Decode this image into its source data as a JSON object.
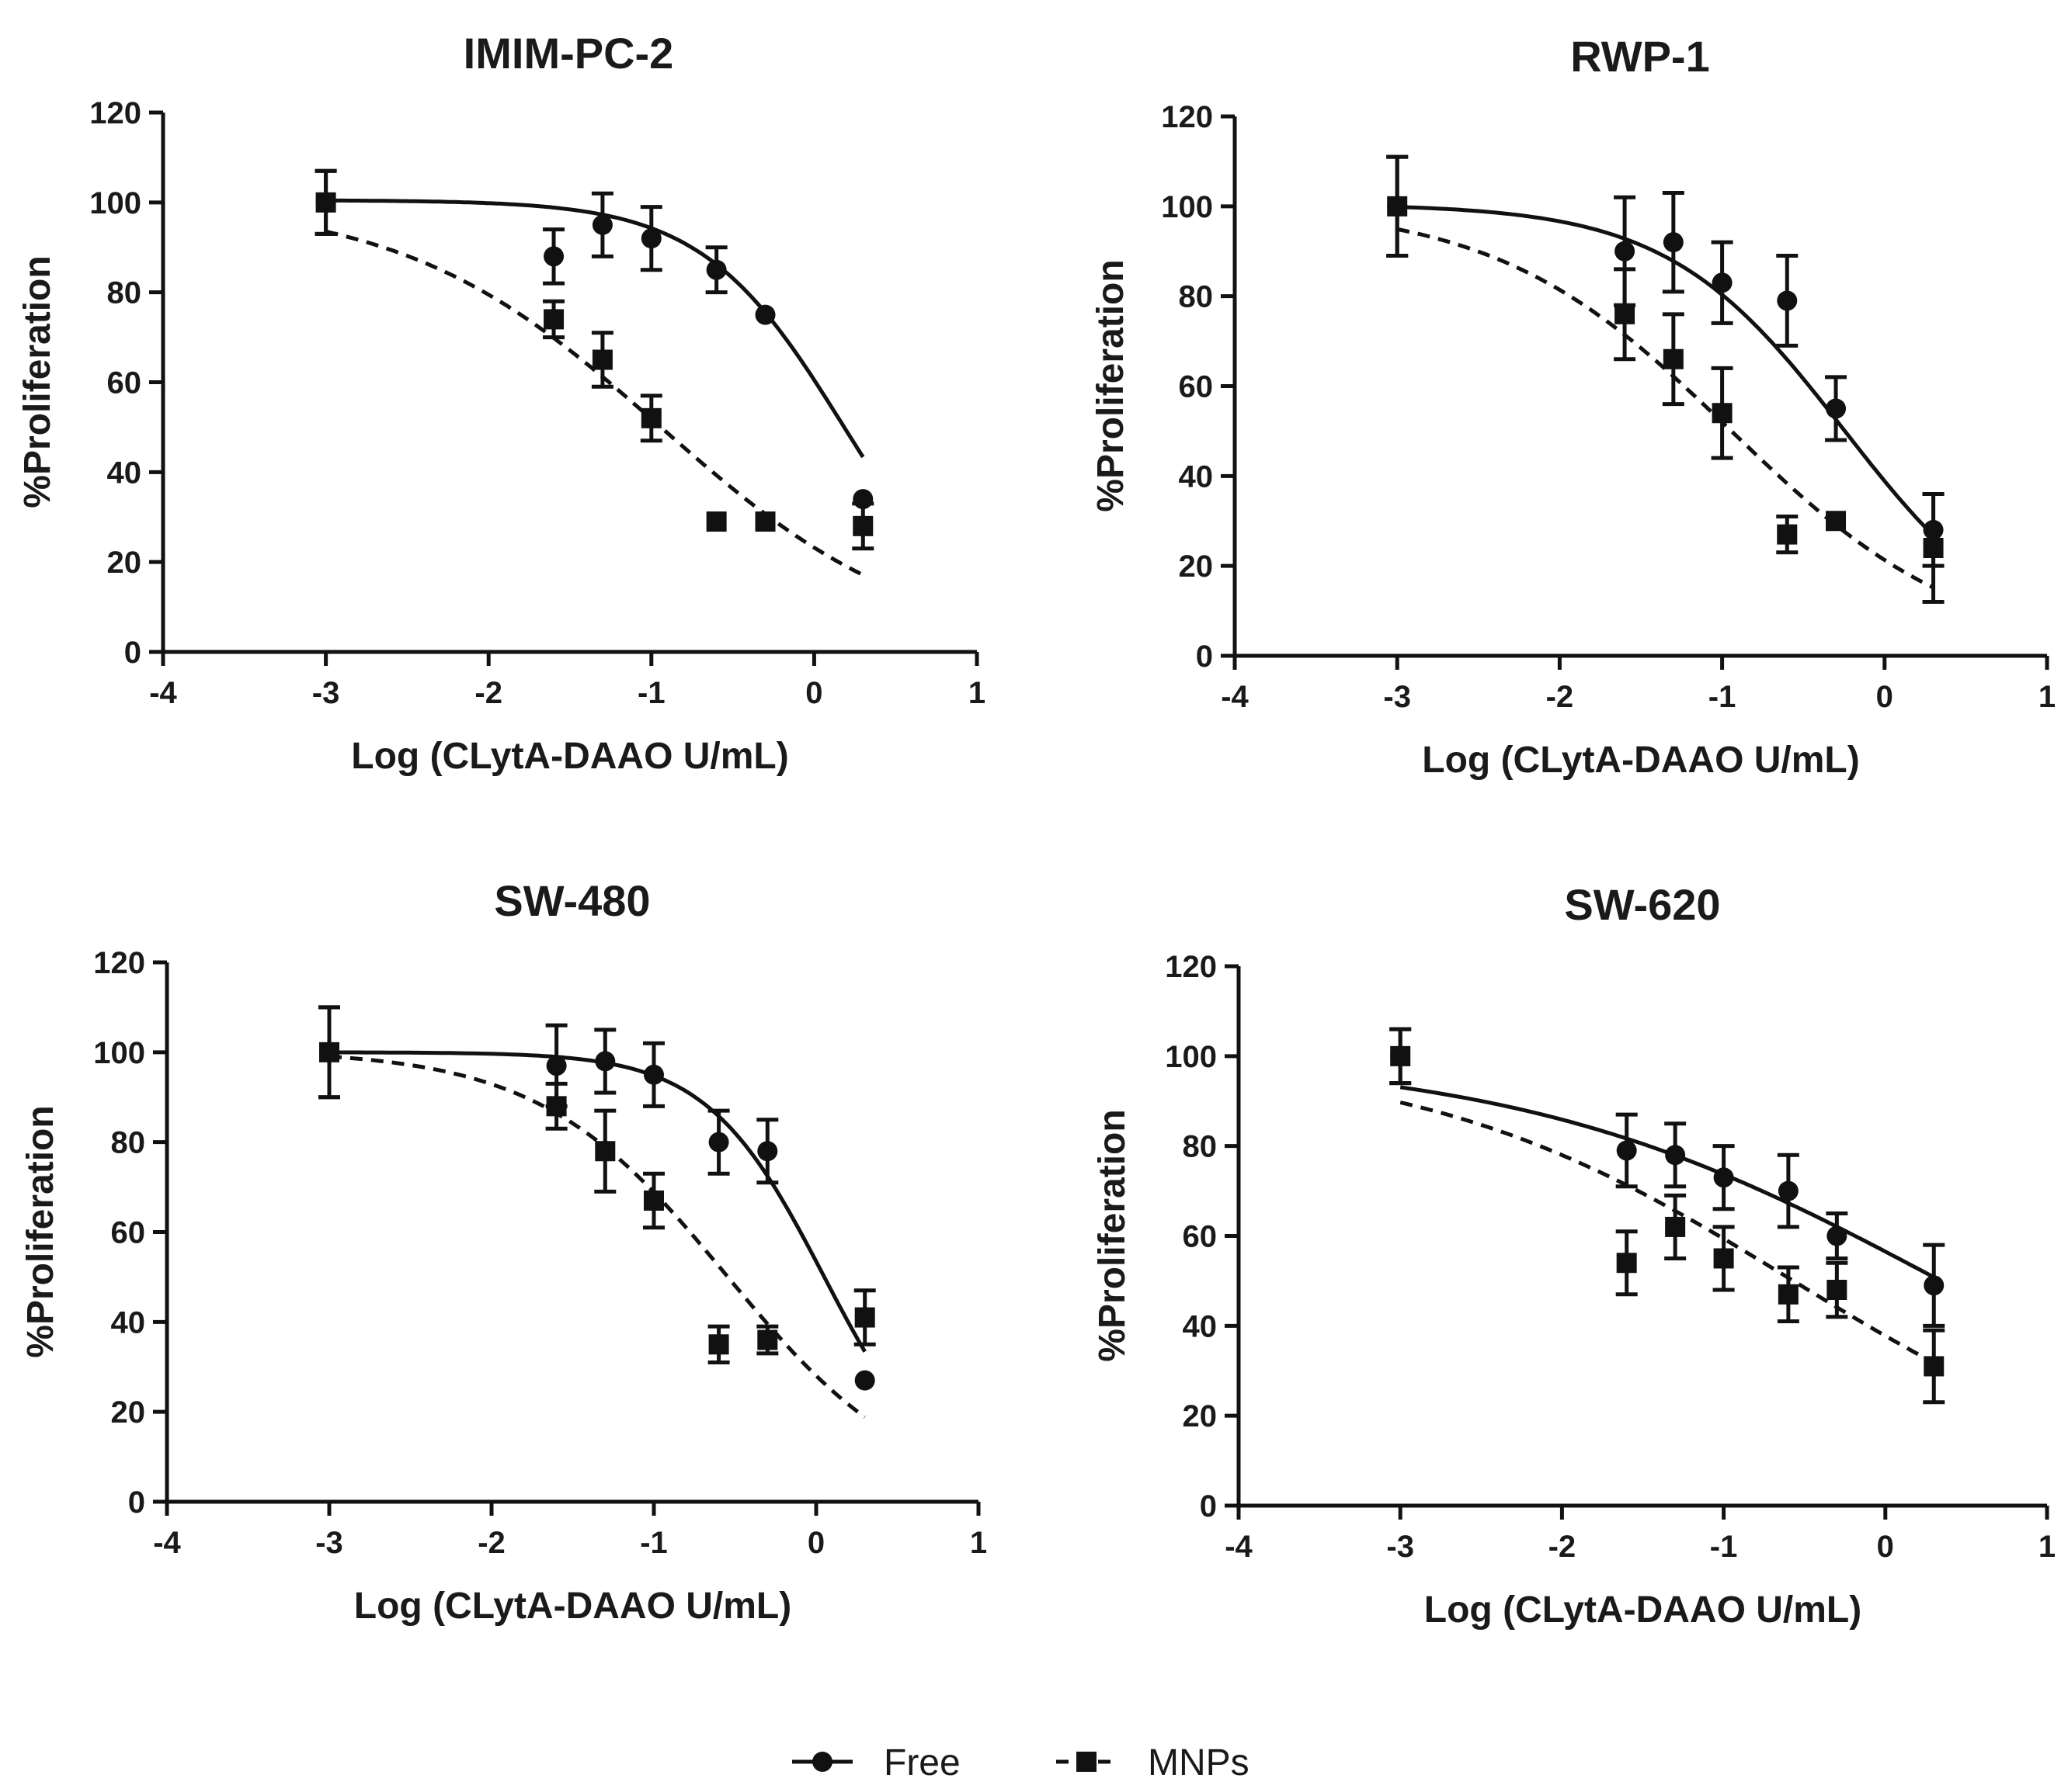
{
  "chart_data": [
    {
      "type": "scatter",
      "title": "IMIM-PC-2",
      "xlabel": "Log (CLytA-DAAO U/mL)",
      "ylabel": "%Proliferation",
      "xlim": [
        -4,
        1
      ],
      "ylim": [
        0,
        120
      ],
      "xticks": [
        -4,
        -3,
        -2,
        -1,
        0,
        1
      ],
      "yticks": [
        0,
        20,
        40,
        60,
        80,
        100,
        120
      ],
      "series": [
        {
          "name": "Free",
          "marker": "circle",
          "line": "solid",
          "x": [
            -3,
            -1.6,
            -1.3,
            -1,
            -0.6,
            -0.3,
            0.3
          ],
          "y": [
            100,
            88,
            95,
            92,
            85,
            75,
            34
          ],
          "err": [
            7,
            6,
            7,
            7,
            5,
            0,
            0
          ],
          "fit": {
            "top": 100.5,
            "bottom": 0,
            "logIC50": 0.18,
            "hill": 1.0
          }
        },
        {
          "name": "MNPs",
          "marker": "square",
          "line": "dashed",
          "x": [
            -3,
            -1.6,
            -1.3,
            -1,
            -0.6,
            -0.3,
            0.3
          ],
          "y": [
            100,
            74,
            65,
            52,
            29,
            29,
            28
          ],
          "err": [
            7,
            4,
            6,
            5,
            0,
            0,
            5
          ],
          "fit": {
            "top": 100.5,
            "bottom": 0,
            "logIC50": -0.95,
            "hill": 0.55
          }
        }
      ]
    },
    {
      "type": "scatter",
      "title": "RWP-1",
      "xlabel": "Log (CLytA-DAAO U/mL)",
      "ylabel": "%Proliferation",
      "xlim": [
        -4,
        1
      ],
      "ylim": [
        0,
        120
      ],
      "xticks": [
        -4,
        -3,
        -2,
        -1,
        0,
        1
      ],
      "yticks": [
        0,
        20,
        40,
        60,
        80,
        100,
        120
      ],
      "series": [
        {
          "name": "Free",
          "marker": "circle",
          "line": "solid",
          "x": [
            -3,
            -1.6,
            -1.3,
            -1,
            -0.6,
            -0.3,
            0.3
          ],
          "y": [
            100,
            90,
            92,
            83,
            79,
            55,
            28
          ],
          "err": [
            11,
            12,
            11,
            9,
            10,
            7,
            8
          ],
          "fit": {
            "top": 100.5,
            "bottom": 0,
            "logIC50": -0.25,
            "hill": 0.8
          }
        },
        {
          "name": "MNPs",
          "marker": "square",
          "line": "dashed",
          "x": [
            -3,
            -1.6,
            -1.3,
            -1,
            -0.6,
            -0.3,
            0.3
          ],
          "y": [
            100,
            76,
            66,
            54,
            27,
            30,
            24
          ],
          "err": [
            11,
            10,
            10,
            10,
            4,
            0,
            12
          ],
          "fit": {
            "top": 100.5,
            "bottom": 0,
            "logIC50": -0.95,
            "hill": 0.6
          }
        }
      ]
    },
    {
      "type": "scatter",
      "title": "SW-480",
      "xlabel": "Log (CLytA-DAAO U/mL)",
      "ylabel": "%Proliferation",
      "xlim": [
        -4,
        1
      ],
      "ylim": [
        0,
        120
      ],
      "xticks": [
        -4,
        -3,
        -2,
        -1,
        0,
        1
      ],
      "yticks": [
        0,
        20,
        40,
        60,
        80,
        100,
        120
      ],
      "series": [
        {
          "name": "Free",
          "marker": "circle",
          "line": "solid",
          "x": [
            -3,
            -1.6,
            -1.3,
            -1,
            -0.6,
            -0.3,
            0.3
          ],
          "y": [
            100,
            97,
            98,
            95,
            80,
            78,
            27
          ],
          "err": [
            10,
            9,
            7,
            7,
            7,
            7,
            0
          ],
          "fit": {
            "top": 100,
            "bottom": 0,
            "logIC50": 0.05,
            "hill": 1.2
          }
        },
        {
          "name": "MNPs",
          "marker": "square",
          "line": "dashed",
          "x": [
            -3,
            -1.6,
            -1.3,
            -1,
            -0.6,
            -0.3,
            0.3
          ],
          "y": [
            100,
            88,
            78,
            67,
            35,
            36,
            41
          ],
          "err": [
            10,
            5,
            9,
            6,
            4,
            3,
            6
          ],
          "fit": {
            "top": 100.5,
            "bottom": 0,
            "logIC50": -0.55,
            "hill": 0.75
          }
        }
      ]
    },
    {
      "type": "scatter",
      "title": "SW-620",
      "xlabel": "Log (CLytA-DAAO U/mL)",
      "ylabel": "%Proliferation",
      "xlim": [
        -4,
        1
      ],
      "ylim": [
        0,
        120
      ],
      "xticks": [
        -4,
        -3,
        -2,
        -1,
        0,
        1
      ],
      "yticks": [
        0,
        20,
        40,
        60,
        80,
        100,
        120
      ],
      "series": [
        {
          "name": "Free",
          "marker": "circle",
          "line": "solid",
          "x": [
            -3,
            -1.6,
            -1.3,
            -1,
            -0.6,
            -0.3,
            0.3
          ],
          "y": [
            100,
            79,
            78,
            73,
            70,
            60,
            49
          ],
          "err": [
            6,
            8,
            7,
            7,
            8,
            5,
            9
          ],
          "fit": {
            "top": 100.5,
            "bottom": 0,
            "logIC50": 0.33,
            "hill": 0.33
          }
        },
        {
          "name": "MNPs",
          "marker": "square",
          "line": "dashed",
          "x": [
            -3,
            -1.6,
            -1.3,
            -1,
            -0.6,
            -0.3,
            0.3
          ],
          "y": [
            100,
            54,
            62,
            55,
            47,
            48,
            31
          ],
          "err": [
            6,
            7,
            7,
            7,
            6,
            6,
            8
          ],
          "fit": {
            "top": 100.5,
            "bottom": 0,
            "logIC50": -0.58,
            "hill": 0.38
          }
        }
      ]
    }
  ],
  "legend": {
    "position": "bottom-center",
    "items": [
      {
        "label": "Free",
        "marker": "circle",
        "line": "solid"
      },
      {
        "label": "MNPs",
        "marker": "square",
        "line": "dashed"
      }
    ]
  }
}
